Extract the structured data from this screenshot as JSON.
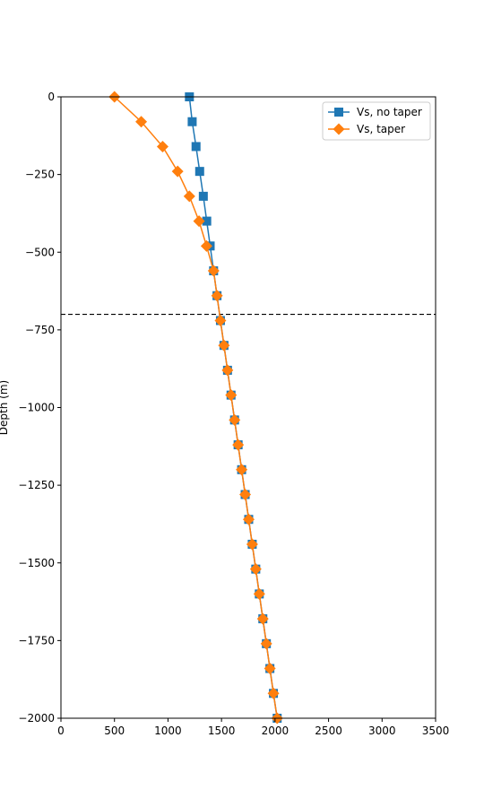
{
  "chart_data": {
    "type": "line",
    "title": "",
    "xlabel": "",
    "ylabel": "Depth (m)",
    "xlim": [
      0,
      3500
    ],
    "ylim": [
      -2000,
      0
    ],
    "xticks": [
      0,
      500,
      1000,
      1500,
      2000,
      2500,
      3000,
      3500
    ],
    "yticks": [
      0,
      -250,
      -500,
      -750,
      -1000,
      -1250,
      -1500,
      -1750,
      -2000
    ],
    "xtick_labels": [
      "0",
      "500",
      "1000",
      "1500",
      "2000",
      "2500",
      "3000",
      "3500"
    ],
    "ytick_labels": [
      "0",
      "−250",
      "−500",
      "−750",
      "−1000",
      "−1250",
      "−1500",
      "−1750",
      "−2000"
    ],
    "grid": false,
    "legend_position": "top-right",
    "reference_line": {
      "y": -700,
      "style": "dashed",
      "color": "#000000"
    },
    "depths": [
      0,
      -80,
      -160,
      -240,
      -320,
      -400,
      -480,
      -560,
      -640,
      -720,
      -800,
      -880,
      -960,
      -1040,
      -1120,
      -1200,
      -1280,
      -1360,
      -1440,
      -1520,
      -1600,
      -1680,
      -1760,
      -1840,
      -1920,
      -2000
    ],
    "series": [
      {
        "name": "Vs, no taper",
        "color": "#1f77b4",
        "marker": "square",
        "values": [
          1200,
          1226,
          1262,
          1296,
          1330,
          1362,
          1394,
          1426,
          1458,
          1490,
          1523,
          1556,
          1589,
          1622,
          1655,
          1688,
          1721,
          1754,
          1787,
          1820,
          1853,
          1886,
          1919,
          1952,
          1985,
          2020
        ]
      },
      {
        "name": "Vs, taper",
        "color": "#ff7f0e",
        "marker": "diamond",
        "values": [
          500,
          750,
          950,
          1090,
          1200,
          1290,
          1360,
          1426,
          1458,
          1490,
          1523,
          1556,
          1589,
          1622,
          1655,
          1688,
          1721,
          1754,
          1787,
          1820,
          1853,
          1886,
          1919,
          1952,
          1985,
          2020
        ]
      }
    ]
  }
}
